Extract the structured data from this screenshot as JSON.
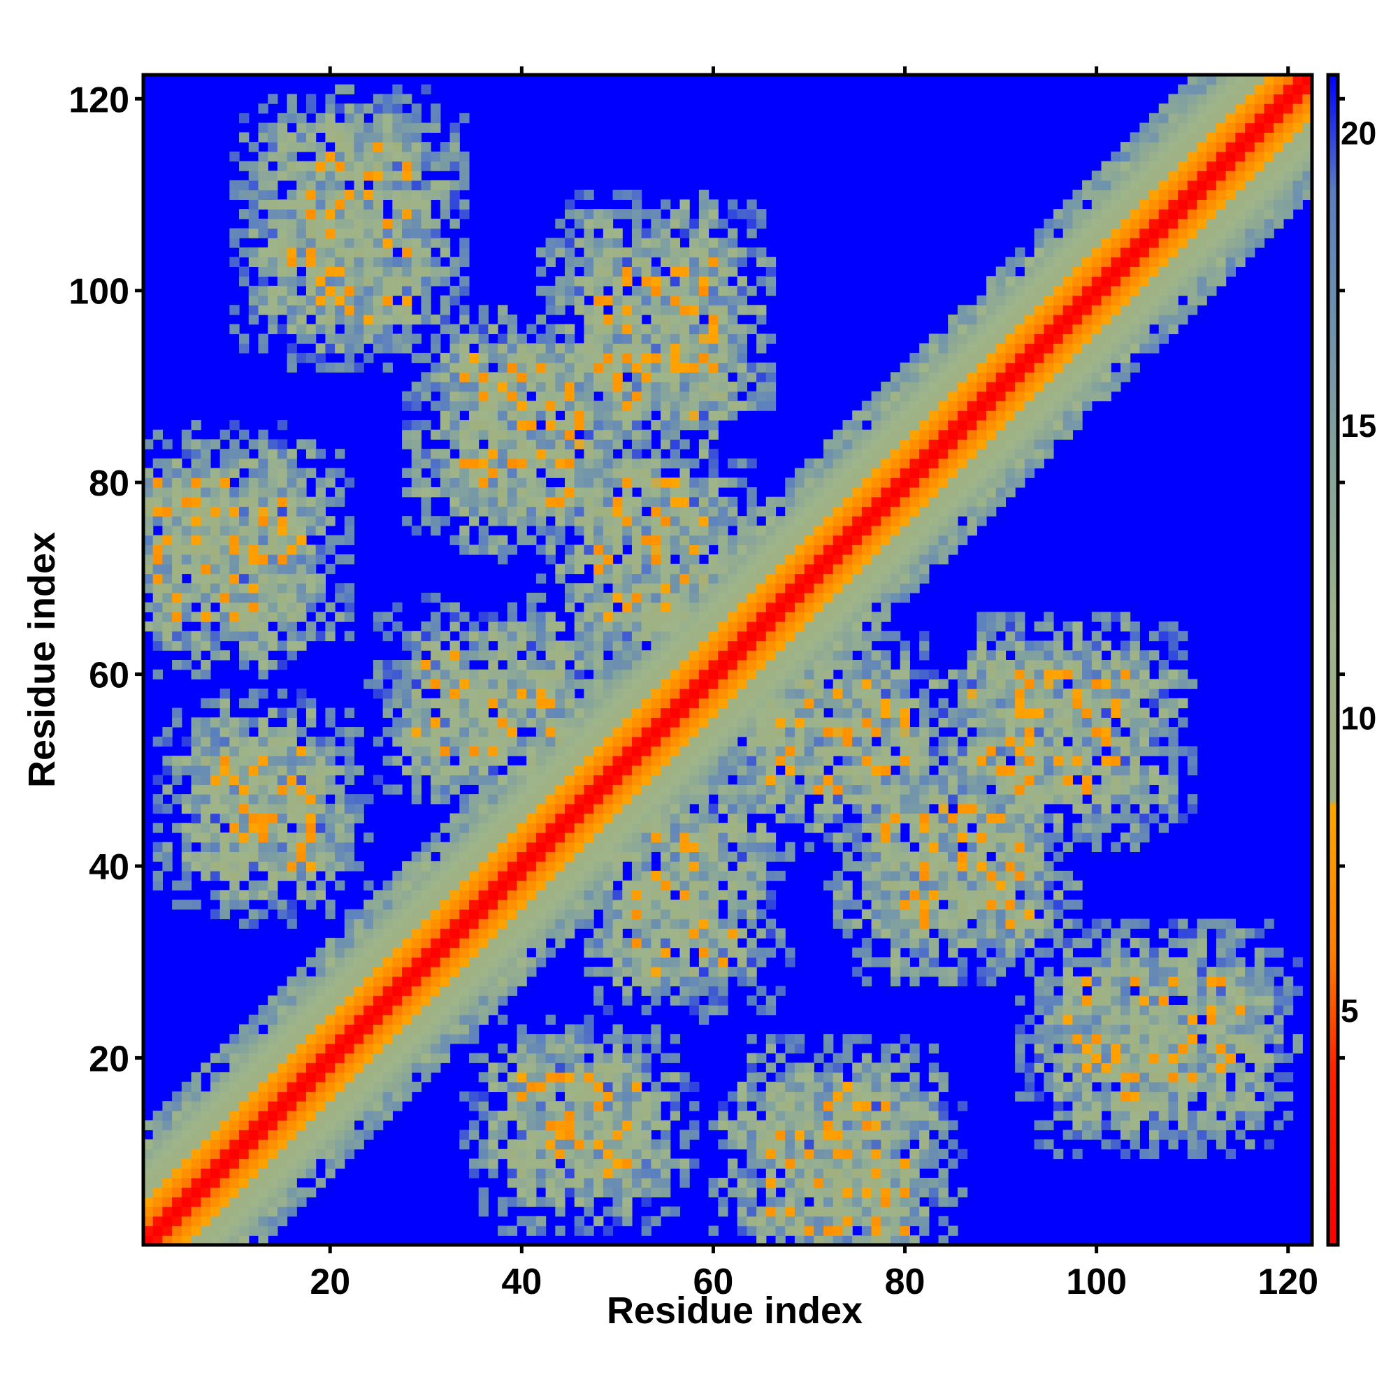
{
  "chart_data": {
    "type": "heatmap",
    "title": "",
    "xlabel": "Residue index",
    "ylabel": "Residue index",
    "n_residues": 122,
    "xlim": [
      1,
      122
    ],
    "ylim": [
      1,
      122
    ],
    "x_ticks": [
      20,
      40,
      60,
      80,
      100,
      120
    ],
    "y_ticks": [
      20,
      40,
      60,
      80,
      100,
      120
    ],
    "x_tick_labels": [
      "20",
      "40",
      "60",
      "80",
      "100",
      "120"
    ],
    "y_tick_labels": [
      "20",
      "40",
      "60",
      "80",
      "100",
      "120"
    ],
    "colorbar": {
      "range": [
        1,
        21
      ],
      "ticks": [
        5,
        10,
        15,
        20
      ],
      "tick_labels": [
        "5",
        "10",
        "15",
        "20"
      ],
      "stops": [
        {
          "value": 1,
          "color": "#ff0000"
        },
        {
          "value": 4,
          "color": "#ff2200"
        },
        {
          "value": 6,
          "color": "#ff7f00"
        },
        {
          "value": 8.5,
          "color": "#ffa500"
        },
        {
          "value": 8.6,
          "color": "#a0b080"
        },
        {
          "value": 11.5,
          "color": "#9fb48a"
        },
        {
          "value": 15,
          "color": "#7fa0a0"
        },
        {
          "value": 19,
          "color": "#5a7fc0"
        },
        {
          "value": 21,
          "color": "#0000ff"
        }
      ]
    },
    "distance_cutoff": 20,
    "structure": {
      "helices": [
        {
          "a": [
            16,
            28
          ],
          "b": [
            98,
            115
          ]
        },
        {
          "a": [
            2,
            16
          ],
          "b": [
            66,
            80
          ]
        },
        {
          "a": [
            34,
            46
          ],
          "b": [
            78,
            92
          ]
        },
        {
          "a": [
            48,
            60
          ],
          "b": [
            88,
            104
          ]
        }
      ],
      "sheets": [
        {
          "a": [
            8,
            18
          ],
          "b": [
            40,
            52
          ]
        },
        {
          "a": [
            30,
            44
          ],
          "b": [
            52,
            62
          ]
        },
        {
          "a": [
            48,
            58
          ],
          "b": [
            66,
            80
          ]
        }
      ]
    },
    "colors": {
      "far": "#0000ff",
      "contact": "#ff0000",
      "near": "#ff7f00",
      "mid": "#ffa500",
      "medium": "#9fb48a",
      "far_light": "#5a7fc0"
    }
  }
}
